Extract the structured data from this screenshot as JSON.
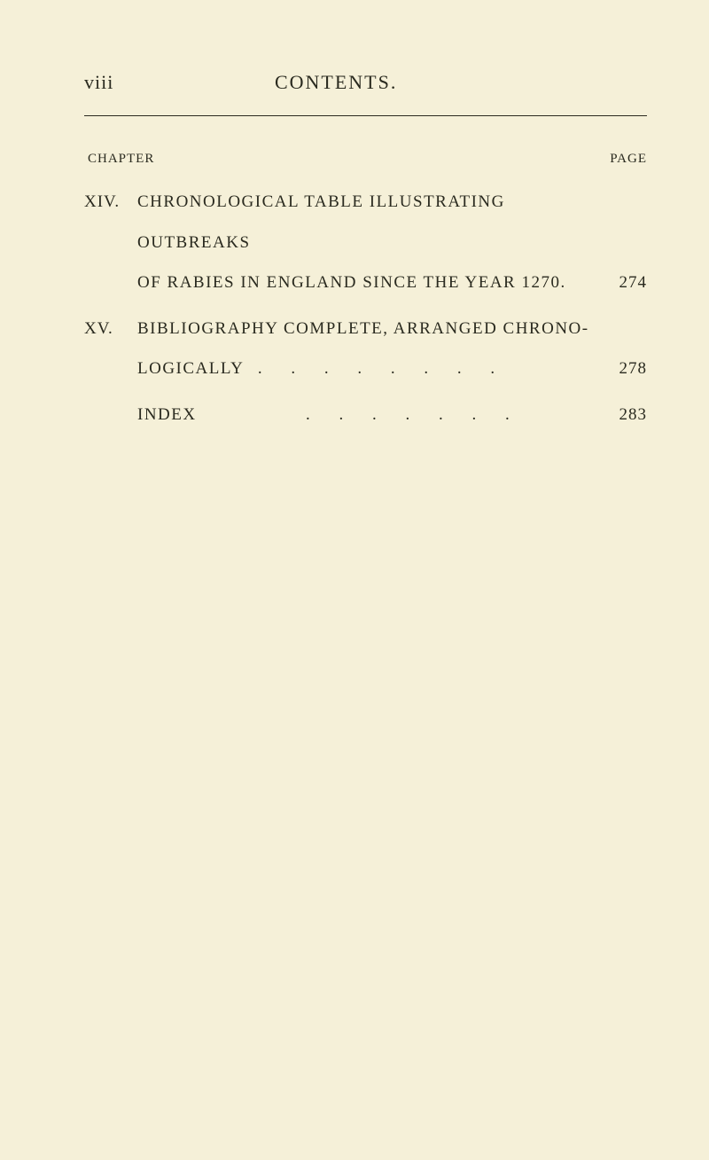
{
  "header": {
    "page_number": "viii",
    "title": "CONTENTS."
  },
  "labels": {
    "chapter": "CHAPTER",
    "page": "PAGE"
  },
  "entries": [
    {
      "chapter": "XIV.",
      "line1": "CHRONOLOGICAL TABLE ILLUSTRATING OUTBREAKS",
      "line2": "OF RABIES IN ENGLAND SINCE THE YEAR 1270.",
      "page": "274"
    },
    {
      "chapter": "XV.",
      "line1": "BIBLIOGRAPHY COMPLETE, ARRANGED CHRONO-",
      "line2_label": "LOGICALLY",
      "line2_dots": ". . . . . . . .",
      "page": "278"
    }
  ],
  "index": {
    "label": "INDEX",
    "dots": ". . . . . . .",
    "page": "283"
  },
  "style": {
    "background_color": "#f5f0d8",
    "text_color": "#2a2a1f",
    "body_fontsize": 19,
    "header_fontsize": 22,
    "label_fontsize": 15,
    "line_height": 2.4
  }
}
